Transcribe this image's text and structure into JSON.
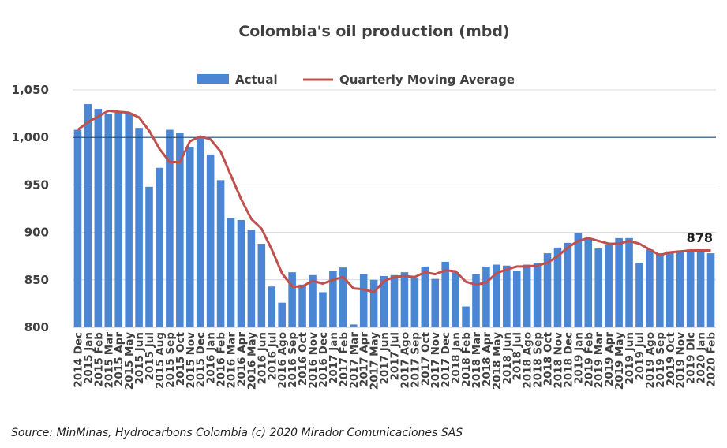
{
  "chart_data": {
    "type": "bar",
    "title": "Colombia's oil production (mbd)",
    "ylim": [
      800,
      1050
    ],
    "yticks": [
      800,
      850,
      900,
      950,
      1000,
      1050
    ],
    "ytick_labels": [
      "800",
      "850",
      "900",
      "950",
      "1,000",
      "1,050"
    ],
    "reference_line": 1000,
    "annotation": {
      "label": "878",
      "value": 878
    },
    "categories": [
      "2014 Dec",
      "2015 Jan",
      "2015 Feb",
      "2015 Mar",
      "2015 Apr",
      "2015 May",
      "2015 Jun",
      "2015 Jul",
      "2015 Aug",
      "2015 Sep",
      "2015 Oct",
      "2015 Nov",
      "2015 Dec",
      "2016 Jan",
      "2016 Feb",
      "2016 Mar",
      "2016 Apr",
      "2016 May",
      "2016 Jun",
      "2016 Jul",
      "2016 Ago",
      "2016 Sep",
      "2016 Oct",
      "2016 Nov",
      "2016 Dec",
      "2017 Jan",
      "2017 Feb",
      "2017 Mar",
      "2017 Apr",
      "2017 May",
      "2017 Jun",
      "2017 Jul",
      "2017 Ago",
      "2017 Sep",
      "2017 Oct",
      "2017 Nov",
      "2017 Dec",
      "2018 Jan",
      "2018 Feb",
      "2018 Mar",
      "2018 Apr",
      "2018 May",
      "2018 Jun",
      "2018 Jul",
      "2018 Ago",
      "2018 Sep",
      "2018 Oct",
      "2018 Nov",
      "2018 Dec",
      "2019 Jan",
      "2019 Feb",
      "2019 Mar",
      "2019 Apr",
      "2019 May",
      "2019 Jun",
      "2019 Jul",
      "2019 Ago",
      "2019 Sep",
      "2019 Oct",
      "2019 Nov",
      "2019 Dic",
      "2020 Jan",
      "2020 Feb"
    ],
    "xtick_labels": [
      "2014 Dec",
      "2015 Jan",
      "2015 Feb",
      "2015 Mar",
      "2015 Apr",
      "2015 May",
      "2015 Jun",
      "2015 Jul",
      "2015 Aug",
      "2015 Sep",
      "2015 Oct",
      "2015 Nov",
      "2015 Dec",
      "2016 Jan",
      "2016 Feb",
      "2016 Mar",
      "2016 Apr",
      "2016 May",
      "2016 Jun",
      "2016 Jul",
      "2016 Ago",
      "2016 Sep",
      "2016 Oct",
      "2016 Nov",
      "2016 Dec",
      "2017 Jan",
      "2017 Feb",
      "2017 Mar",
      "2017 Apr",
      "2017 May",
      "2017 Jun",
      "2017 Jul",
      "2017 Ago",
      "2017 Sep",
      "2017 Oct",
      "2017 Nov",
      "2017 Dec",
      "2018 Jan",
      "2018 Feb",
      "2018 Mar",
      "2018 Apr",
      "2018 May",
      "2018 Jun",
      "2018 Jul",
      "2018 Ago",
      "2018 Sep",
      "2018 Oct",
      "2018 Nov",
      "2018 Dec",
      "2019 Jan",
      "2019 Feb",
      "2019 Mar",
      "2019 Apr",
      "2019 May",
      "2019 Jun",
      "2019 Jul",
      "2019 Ago",
      "2019 Sep",
      "2019 Oct",
      "2019 Nov",
      "2019 Dic",
      "2020 Jan",
      "2020 Feb"
    ],
    "series": [
      {
        "name": "Actual",
        "type": "bar",
        "color": "#4a86d4",
        "values": [
          1008,
          1035,
          1030,
          1025,
          1026,
          1025,
          1010,
          948,
          968,
          1008,
          1005,
          990,
          1000,
          982,
          955,
          915,
          913,
          903,
          888,
          843,
          826,
          858,
          845,
          855,
          837,
          859,
          863,
          803,
          856,
          850,
          854,
          855,
          858,
          852,
          864,
          851,
          869,
          858,
          822,
          856,
          864,
          866,
          865,
          859,
          866,
          868,
          878,
          884,
          889,
          899,
          894,
          883,
          887,
          894,
          894,
          868,
          882,
          878,
          880,
          881,
          882,
          882,
          878
        ]
      },
      {
        "name": "Quarterly Moving Average",
        "type": "line",
        "color": "#c0504d",
        "values": [
          1008,
          1016,
          1022,
          1028,
          1027,
          1026,
          1021,
          1007,
          988,
          974,
          974,
          996,
          1001,
          998,
          985,
          960,
          935,
          914,
          904,
          882,
          857,
          843,
          843,
          849,
          846,
          850,
          853,
          841,
          840,
          837,
          849,
          853,
          854,
          853,
          858,
          856,
          860,
          859,
          848,
          845,
          847,
          857,
          861,
          864,
          864,
          865,
          868,
          875,
          884,
          891,
          894,
          891,
          888,
          888,
          891,
          888,
          882,
          876,
          879,
          880,
          881,
          881,
          881
        ]
      }
    ],
    "legend": [
      {
        "label": "Actual",
        "marker": "bar"
      },
      {
        "label": "Quarterly Moving Average",
        "marker": "line"
      }
    ],
    "legend_position": "top"
  },
  "source": "Source: MinMinas, Hydrocarbons Colombia (c) 2020 Mirador Comunicaciones SAS"
}
